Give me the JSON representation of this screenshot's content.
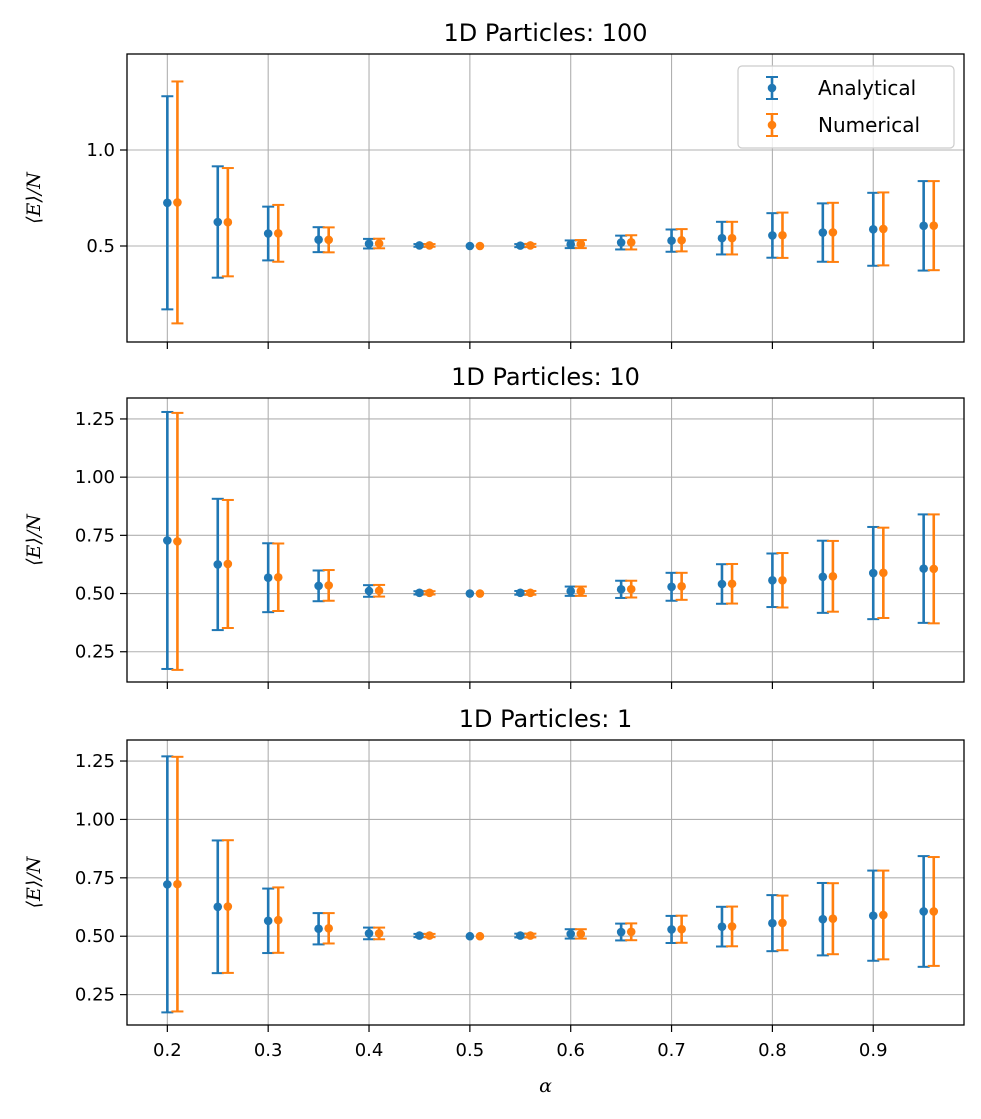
{
  "chart_data": [
    {
      "type": "errorbar",
      "title": "1D Particles: 100",
      "xlabel": "",
      "ylabel": "⟨E⟩/N",
      "xlim": [
        0.16,
        0.99
      ],
      "ylim": [
        0.0,
        1.5
      ],
      "yticks": [
        0.5,
        1.0
      ],
      "ytick_labels": [
        "0.5",
        "1.0"
      ],
      "grid": true,
      "legend": {
        "placement": "top-right",
        "entries": [
          {
            "label": "Analytical",
            "color": "#1f77b4"
          },
          {
            "label": "Numerical",
            "color": "#ff7f0e"
          }
        ]
      },
      "x": [
        0.2,
        0.25,
        0.3,
        0.35,
        0.4,
        0.45,
        0.5,
        0.55,
        0.6,
        0.65,
        0.7,
        0.75,
        0.8,
        0.85,
        0.9,
        0.95
      ],
      "series": [
        {
          "name": "Analytical",
          "color": "#1f77b4",
          "x_offset": 0.0,
          "values": [
            0.725,
            0.625,
            0.565,
            0.533,
            0.512,
            0.503,
            0.5,
            0.502,
            0.509,
            0.518,
            0.528,
            0.541,
            0.555,
            0.57,
            0.587,
            0.605
          ],
          "errors": [
            0.555,
            0.29,
            0.14,
            0.065,
            0.025,
            0.007,
            0.0,
            0.008,
            0.02,
            0.036,
            0.058,
            0.085,
            0.116,
            0.152,
            0.19,
            0.233
          ]
        },
        {
          "name": "Numerical",
          "color": "#ff7f0e",
          "x_offset": 0.01,
          "values": [
            0.727,
            0.624,
            0.566,
            0.532,
            0.513,
            0.503,
            0.5,
            0.503,
            0.51,
            0.519,
            0.53,
            0.541,
            0.556,
            0.571,
            0.589,
            0.606
          ],
          "errors": [
            0.63,
            0.282,
            0.148,
            0.065,
            0.025,
            0.007,
            0.0,
            0.008,
            0.021,
            0.037,
            0.058,
            0.085,
            0.118,
            0.154,
            0.19,
            0.232
          ]
        }
      ]
    },
    {
      "type": "errorbar",
      "title": "1D Particles: 10",
      "xlabel": "",
      "ylabel": "⟨E⟩/N",
      "xlim": [
        0.16,
        0.99
      ],
      "ylim": [
        0.12,
        1.34
      ],
      "yticks": [
        0.25,
        0.5,
        0.75,
        1.0,
        1.25
      ],
      "ytick_labels": [
        "0.25",
        "0.50",
        "0.75",
        "1.00",
        "1.25"
      ],
      "grid": true,
      "x": [
        0.2,
        0.25,
        0.3,
        0.35,
        0.4,
        0.45,
        0.5,
        0.55,
        0.6,
        0.65,
        0.7,
        0.75,
        0.8,
        0.85,
        0.9,
        0.95
      ],
      "series": [
        {
          "name": "Analytical",
          "color": "#1f77b4",
          "x_offset": 0.0,
          "values": [
            0.728,
            0.625,
            0.568,
            0.533,
            0.511,
            0.503,
            0.5,
            0.503,
            0.51,
            0.518,
            0.529,
            0.541,
            0.557,
            0.572,
            0.588,
            0.607
          ],
          "errors": [
            0.552,
            0.282,
            0.148,
            0.066,
            0.025,
            0.007,
            0.0,
            0.008,
            0.02,
            0.037,
            0.06,
            0.085,
            0.115,
            0.155,
            0.198,
            0.233
          ]
        },
        {
          "name": "Numerical",
          "color": "#ff7f0e",
          "x_offset": 0.01,
          "values": [
            0.724,
            0.627,
            0.57,
            0.535,
            0.512,
            0.503,
            0.5,
            0.503,
            0.51,
            0.519,
            0.531,
            0.542,
            0.557,
            0.574,
            0.589,
            0.606
          ],
          "errors": [
            0.552,
            0.275,
            0.145,
            0.066,
            0.025,
            0.007,
            0.0,
            0.008,
            0.02,
            0.036,
            0.058,
            0.085,
            0.117,
            0.152,
            0.194,
            0.234
          ]
        }
      ]
    },
    {
      "type": "errorbar",
      "title": "1D Particles: 1",
      "xlabel": "α",
      "ylabel": "⟨E⟩/N",
      "xlim": [
        0.16,
        0.99
      ],
      "ylim": [
        0.12,
        1.34
      ],
      "yticks": [
        0.25,
        0.5,
        0.75,
        1.0,
        1.25
      ],
      "ytick_labels": [
        "0.25",
        "0.50",
        "0.75",
        "1.00",
        "1.25"
      ],
      "xticks": [
        0.2,
        0.3,
        0.4,
        0.5,
        0.6,
        0.7,
        0.8,
        0.9
      ],
      "xtick_labels": [
        "0.2",
        "0.3",
        "0.4",
        "0.5",
        "0.6",
        "0.7",
        "0.8",
        "0.9"
      ],
      "grid": true,
      "x": [
        0.2,
        0.25,
        0.3,
        0.35,
        0.4,
        0.45,
        0.5,
        0.55,
        0.6,
        0.65,
        0.7,
        0.75,
        0.8,
        0.85,
        0.9,
        0.95
      ],
      "series": [
        {
          "name": "Analytical",
          "color": "#1f77b4",
          "x_offset": 0.0,
          "values": [
            0.722,
            0.626,
            0.566,
            0.532,
            0.512,
            0.503,
            0.5,
            0.503,
            0.51,
            0.518,
            0.529,
            0.541,
            0.556,
            0.573,
            0.588,
            0.606
          ],
          "errors": [
            0.548,
            0.284,
            0.138,
            0.067,
            0.025,
            0.007,
            0.0,
            0.008,
            0.02,
            0.036,
            0.058,
            0.085,
            0.12,
            0.155,
            0.193,
            0.237
          ]
        },
        {
          "name": "Numerical",
          "color": "#ff7f0e",
          "x_offset": 0.01,
          "values": [
            0.723,
            0.627,
            0.569,
            0.534,
            0.512,
            0.503,
            0.5,
            0.503,
            0.51,
            0.519,
            0.53,
            0.542,
            0.557,
            0.575,
            0.591,
            0.606
          ],
          "errors": [
            0.545,
            0.284,
            0.14,
            0.065,
            0.025,
            0.007,
            0.0,
            0.008,
            0.02,
            0.036,
            0.058,
            0.085,
            0.117,
            0.152,
            0.19,
            0.233
          ]
        }
      ]
    }
  ]
}
